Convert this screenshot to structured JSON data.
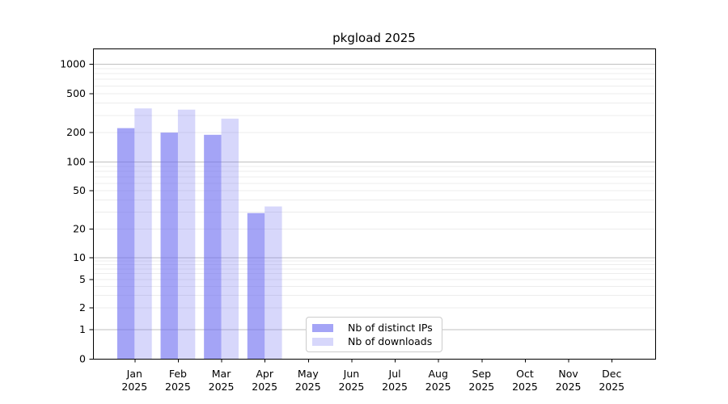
{
  "title": "pkgload 2025",
  "chart_data": {
    "type": "bar",
    "title": "pkgload 2025",
    "categories": [
      "Jan",
      "Feb",
      "Mar",
      "Apr",
      "May",
      "Jun",
      "Jul",
      "Aug",
      "Sep",
      "Oct",
      "Nov",
      "Dec"
    ],
    "category_year": "2025",
    "series": [
      {
        "name": "Nb of distinct IPs",
        "color": "rgba(108,108,240,0.62)",
        "values": [
          220,
          198,
          188,
          29,
          0,
          0,
          0,
          0,
          0,
          0,
          0,
          0
        ]
      },
      {
        "name": "Nb of downloads",
        "color": "rgba(108,108,240,0.27)",
        "values": [
          350,
          340,
          275,
          34,
          0,
          0,
          0,
          0,
          0,
          0,
          0,
          0
        ]
      }
    ],
    "xlabel": "",
    "ylabel": "",
    "yscale": "symlog",
    "yticks": [
      0,
      1,
      2,
      5,
      10,
      20,
      50,
      100,
      200,
      500,
      1000
    ],
    "ylim": [
      0,
      1400
    ],
    "grid": true,
    "legend_position": "lower center"
  },
  "colors": {
    "grid_minor": "#ececec",
    "grid_major": "#c0c0c0",
    "axis": "#000000",
    "tick_text": "#000000",
    "legend_border": "#cccccc"
  }
}
